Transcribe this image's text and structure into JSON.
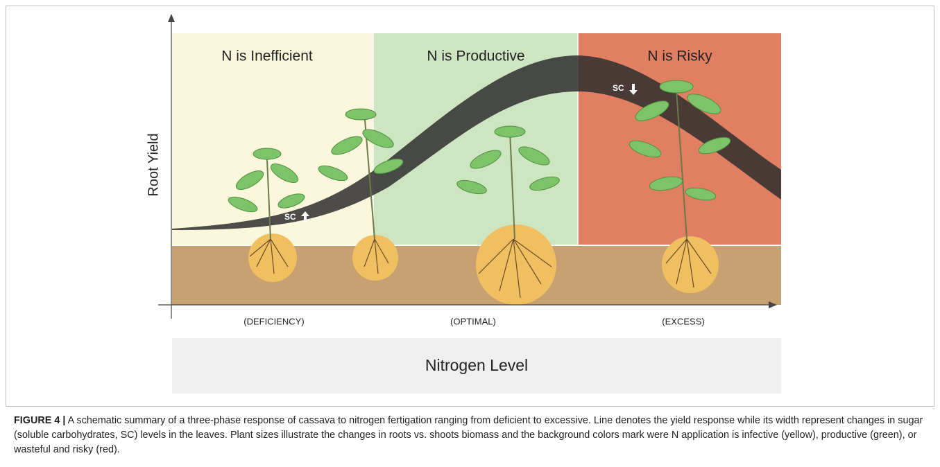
{
  "zones": [
    {
      "title": "N is Inefficient"
    },
    {
      "title": "N is Productive"
    },
    {
      "title": "N is Risky"
    }
  ],
  "y_axis_label": "Root Yield",
  "x_levels": [
    "(DEFICIENCY)",
    "(OPTIMAL)",
    "(EXCESS)"
  ],
  "sc_labels": [
    "SC",
    "SC"
  ],
  "x_axis_title": "Nitrogen Level",
  "caption": {
    "label": "FIGURE 4 |",
    "text": "A schematic summary of a three-phase response of cassava to nitrogen fertigation ranging from deficient to excessive. Line denotes the yield response while its width represent changes in sugar (soluble carbohydrates, SC) levels in the leaves. Plant sizes illustrate the changes in roots vs. shoots biomass and the background colors mark were N application is infective (yellow), productive (green), or wasteful and risky (red)."
  }
}
